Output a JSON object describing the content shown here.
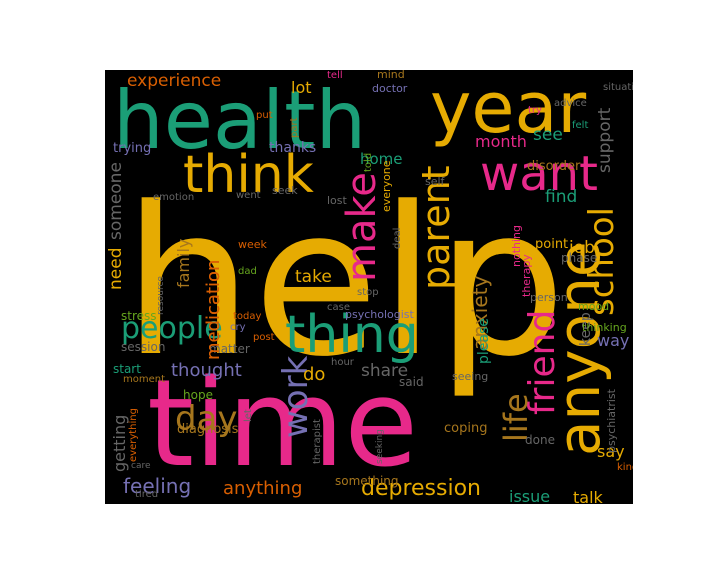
{
  "palette": {
    "green": "#1b9e77",
    "gold": "#e6ab02",
    "pink": "#e7298a",
    "orange": "#d95f02",
    "purple": "#7570b3",
    "lime": "#66a61e",
    "brown": "#a6761d",
    "gray": "#666666",
    "background": "#000000"
  },
  "words": [
    {
      "text": "help",
      "color": "gold"
    },
    {
      "text": "time",
      "color": "pink"
    },
    {
      "text": "health",
      "color": "green"
    },
    {
      "text": "year",
      "color": "gold"
    },
    {
      "text": "want",
      "color": "pink"
    },
    {
      "text": "think",
      "color": "gold"
    },
    {
      "text": "anyone",
      "color": "gold"
    },
    {
      "text": "thing",
      "color": "green"
    },
    {
      "text": "people",
      "color": "green"
    },
    {
      "text": "friend",
      "color": "pink"
    },
    {
      "text": "school",
      "color": "gold"
    },
    {
      "text": "make",
      "color": "pink"
    },
    {
      "text": "parent",
      "color": "gold"
    },
    {
      "text": "work",
      "color": "purple"
    },
    {
      "text": "day",
      "color": "brown"
    },
    {
      "text": "life",
      "color": "brown"
    },
    {
      "text": "depression",
      "color": "gold"
    },
    {
      "text": "feeling",
      "color": "purple"
    },
    {
      "text": "anything",
      "color": "orange"
    },
    {
      "text": "experience",
      "color": "orange"
    },
    {
      "text": "anxiety",
      "color": "brown"
    },
    {
      "text": "medication",
      "color": "orange"
    },
    {
      "text": "thought",
      "color": "purple"
    },
    {
      "text": "share",
      "color": "gray"
    },
    {
      "text": "take",
      "color": "gold"
    },
    {
      "text": "support",
      "color": "gray"
    },
    {
      "text": "someone",
      "color": "gray"
    },
    {
      "text": "family",
      "color": "brown"
    },
    {
      "text": "need",
      "color": "gold"
    },
    {
      "text": "month",
      "color": "pink"
    },
    {
      "text": "find",
      "color": "green"
    },
    {
      "text": "job",
      "color": "gold"
    },
    {
      "text": "issue",
      "color": "green"
    },
    {
      "text": "talk",
      "color": "gold"
    },
    {
      "text": "say",
      "color": "gold"
    },
    {
      "text": "way",
      "color": "purple"
    },
    {
      "text": "getting",
      "color": "gray"
    },
    {
      "text": "do",
      "color": "gold"
    },
    {
      "text": "lot",
      "color": "gold"
    },
    {
      "text": "home",
      "color": "green"
    },
    {
      "text": "see",
      "color": "green"
    },
    {
      "text": "keep",
      "color": "gray"
    },
    {
      "text": "please",
      "color": "green"
    },
    {
      "text": "diagnosis",
      "color": "brown"
    },
    {
      "text": "coping",
      "color": "brown"
    },
    {
      "text": "stress",
      "color": "lime"
    },
    {
      "text": "session",
      "color": "gray"
    },
    {
      "text": "matter",
      "color": "gray"
    },
    {
      "text": "start",
      "color": "green"
    },
    {
      "text": "hope",
      "color": "lime"
    },
    {
      "text": "said",
      "color": "gray"
    },
    {
      "text": "thanks",
      "color": "purple"
    },
    {
      "text": "trying",
      "color": "purple"
    },
    {
      "text": "disorder",
      "color": "brown"
    },
    {
      "text": "medication",
      "color": "orange"
    },
    {
      "text": "psychologist",
      "color": "purple"
    },
    {
      "text": "thinking",
      "color": "lime"
    },
    {
      "text": "psychiatrist",
      "color": "gray"
    },
    {
      "text": "therapy",
      "color": "pink"
    },
    {
      "text": "nothing",
      "color": "pink"
    },
    {
      "text": "point",
      "color": "gold"
    },
    {
      "text": "phase",
      "color": "gray"
    },
    {
      "text": "mood",
      "color": "lime"
    },
    {
      "text": "kind",
      "color": "orange"
    },
    {
      "text": "done",
      "color": "gray"
    },
    {
      "text": "seeing",
      "color": "gray"
    },
    {
      "text": "person",
      "color": "gray"
    },
    {
      "text": "situation",
      "color": "gray"
    },
    {
      "text": "advice",
      "color": "gray"
    },
    {
      "text": "felt",
      "color": "green"
    },
    {
      "text": "try",
      "color": "pink"
    },
    {
      "text": "mind",
      "color": "brown"
    },
    {
      "text": "tell",
      "color": "pink"
    },
    {
      "text": "doctor",
      "color": "purple"
    },
    {
      "text": "part",
      "color": "brown"
    },
    {
      "text": "put",
      "color": "orange"
    },
    {
      "text": "told",
      "color": "lime"
    },
    {
      "text": "self",
      "color": "gray"
    },
    {
      "text": "everyone",
      "color": "gold"
    },
    {
      "text": "deal",
      "color": "gray"
    },
    {
      "text": "lost",
      "color": "gray"
    },
    {
      "text": "went",
      "color": "gray"
    },
    {
      "text": "seek",
      "color": "gray"
    },
    {
      "text": "emotion",
      "color": "gray"
    },
    {
      "text": "week",
      "color": "orange"
    },
    {
      "text": "dad",
      "color": "lime"
    },
    {
      "text": "stop",
      "color": "gray"
    },
    {
      "text": "case",
      "color": "gray"
    },
    {
      "text": "resource",
      "color": "gray"
    },
    {
      "text": "today",
      "color": "orange"
    },
    {
      "text": "cry",
      "color": "purple"
    },
    {
      "text": "post",
      "color": "orange"
    },
    {
      "text": "hour",
      "color": "gray"
    },
    {
      "text": "moment",
      "color": "brown"
    },
    {
      "text": "everything",
      "color": "orange"
    },
    {
      "text": "let",
      "color": "gray"
    },
    {
      "text": "therapist",
      "color": "gray"
    },
    {
      "text": "something",
      "color": "brown"
    },
    {
      "text": "seeking",
      "color": "gray"
    },
    {
      "text": "care",
      "color": "gray"
    },
    {
      "text": "tired",
      "color": "gray"
    }
  ]
}
